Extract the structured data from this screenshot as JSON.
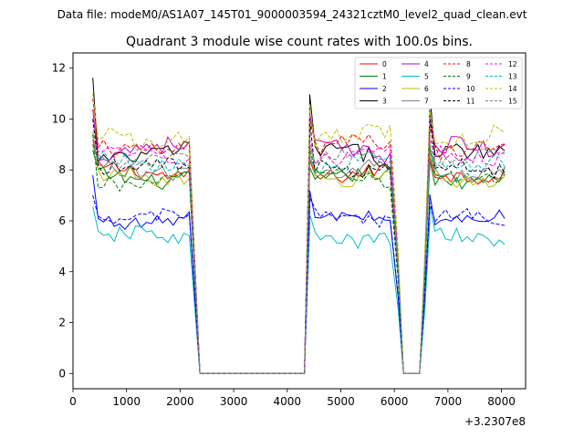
{
  "suptitle": "Data file: modeM0/AS1A07_145T01_9000003594_24321cztM0_level2_quad_clean.evt",
  "chart_data": {
    "type": "line",
    "title": "Quadrant 3 module wise count rates with 100.0s bins.",
    "xlabel": "",
    "ylabel": "",
    "x_offset_label": "+3.2307e8",
    "xlim": [
      0,
      8450
    ],
    "ylim": [
      -0.6,
      12.6
    ],
    "xticks": [
      0,
      1000,
      2000,
      3000,
      4000,
      5000,
      6000,
      7000,
      8000
    ],
    "yticks": [
      0,
      2,
      4,
      6,
      8,
      10,
      12
    ],
    "xtick_labels": [
      "0",
      "1000",
      "2000",
      "3000",
      "4000",
      "5000",
      "6000",
      "7000",
      "8000"
    ],
    "ytick_labels": [
      "0",
      "2",
      "4",
      "6",
      "8",
      "10",
      "12"
    ],
    "grid": false,
    "legend_position": "top-right",
    "segments": [
      {
        "x_start": 370,
        "x_end": 2170,
        "step": 100
      },
      {
        "x_start": 4420,
        "x_end": 5970,
        "step": 100
      },
      {
        "x_start": 6660,
        "x_end": 8060,
        "step": 100
      }
    ],
    "gaps": [
      {
        "x": [
          2170,
          2270,
          2370,
          2470,
          4220,
          4320,
          4420
        ],
        "y": [
          1,
          0.5,
          0,
          0,
          0,
          0,
          1
        ]
      },
      {
        "x": [
          5970,
          6070,
          6170,
          6470,
          6570,
          6660
        ],
        "y": [
          1,
          0.5,
          0,
          0,
          0.5,
          1
        ]
      }
    ],
    "series": [
      {
        "name": "0",
        "color": "#ff0000",
        "dash": "solid",
        "level": 7.9,
        "amp": 0.3,
        "start_boost": 0.9
      },
      {
        "name": "1",
        "color": "#008000",
        "dash": "solid",
        "level": 7.7,
        "amp": 0.3,
        "start_boost": 0.8
      },
      {
        "name": "2",
        "color": "#0000ff",
        "dash": "solid",
        "level": 6.05,
        "amp": 0.25,
        "start_boost": 1.6
      },
      {
        "name": "3",
        "color": "#000000",
        "dash": "solid",
        "level": 8.6,
        "amp": 0.35,
        "start_boost": 3.0
      },
      {
        "name": "4",
        "color": "#bf00bf",
        "dash": "solid",
        "level": 8.8,
        "amp": 0.35,
        "start_boost": 1.6
      },
      {
        "name": "5",
        "color": "#00bfbf",
        "dash": "solid",
        "level": 5.35,
        "amp": 0.3,
        "start_boost": 1.1
      },
      {
        "name": "6",
        "color": "#bfbf00",
        "dash": "solid",
        "level": 7.7,
        "amp": 0.3,
        "start_boost": 1.5
      },
      {
        "name": "7",
        "color": "#808080",
        "dash": "solid",
        "level": 8.0,
        "amp": 0.3,
        "start_boost": 0.8
      },
      {
        "name": "8",
        "color": "#ff0000",
        "dash": "dashed",
        "level": 8.9,
        "amp": 0.35,
        "start_boost": 1.5
      },
      {
        "name": "9",
        "color": "#008000",
        "dash": "dashed",
        "level": 7.6,
        "amp": 0.3,
        "start_boost": 1.6
      },
      {
        "name": "10",
        "color": "#0000ff",
        "dash": "dashed",
        "level": 6.1,
        "amp": 0.25,
        "start_boost": 0.8
      },
      {
        "name": "11",
        "color": "#000000",
        "dash": "dashed",
        "level": 8.1,
        "amp": 0.3,
        "start_boost": 2.3
      },
      {
        "name": "12",
        "color": "#ff00ff",
        "dash": "dashed",
        "level": 8.6,
        "amp": 0.3,
        "start_boost": 0.8
      },
      {
        "name": "13",
        "color": "#00bfbf",
        "dash": "dashed",
        "level": 8.3,
        "amp": 0.3,
        "start_boost": 0.7
      },
      {
        "name": "14",
        "color": "#bfbf00",
        "dash": "dashed",
        "level": 9.3,
        "amp": 0.35,
        "start_boost": 1.8
      },
      {
        "name": "15",
        "color": "#808080",
        "dash": "dashed",
        "level": 8.4,
        "amp": 0.3,
        "start_boost": 0.6
      }
    ]
  }
}
